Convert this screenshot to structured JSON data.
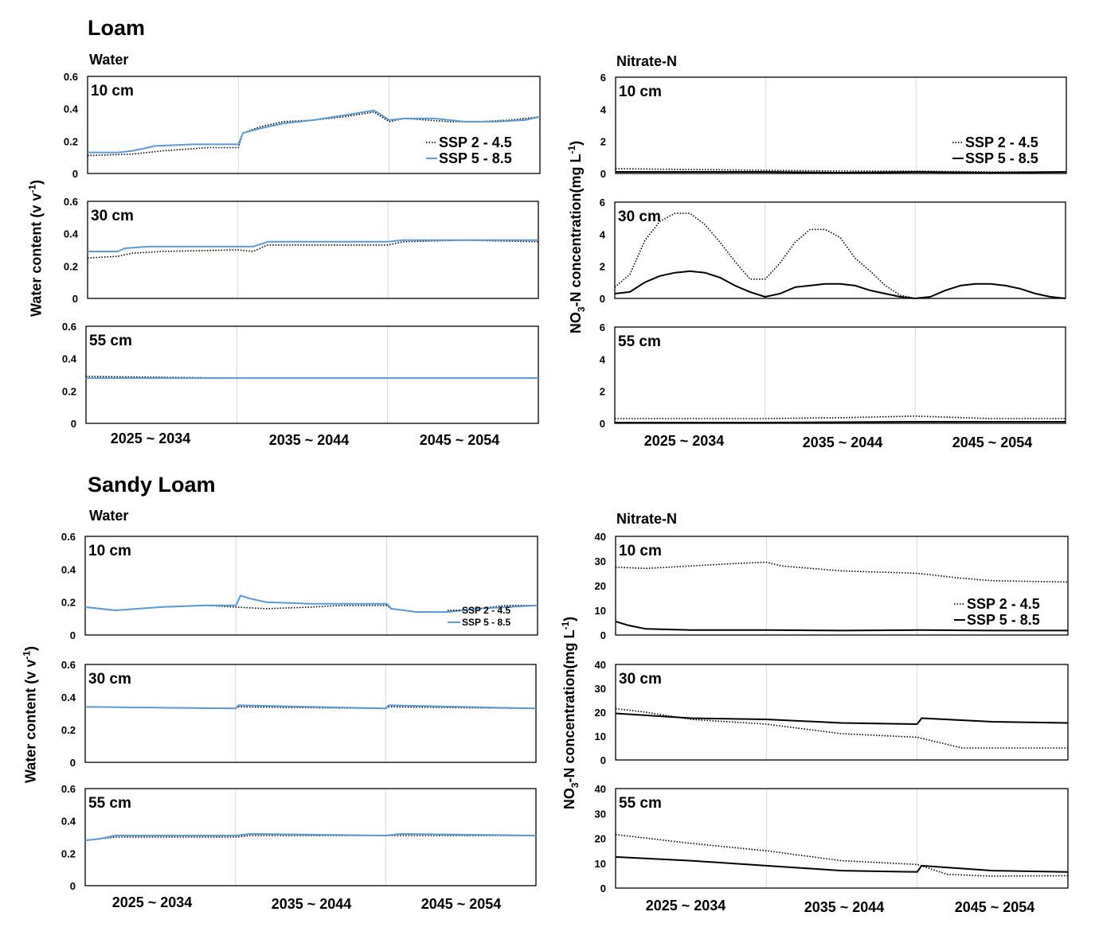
{
  "sections": [
    {
      "key": "loam",
      "title": "Loam"
    },
    {
      "key": "sandy",
      "title": "Sandy Loam"
    }
  ],
  "columns": {
    "water": "Water",
    "nitrate": "Nitrate-N"
  },
  "y_labels": {
    "water": {
      "main": "Water content (v v",
      "sup": "-1",
      "close": ")"
    },
    "nitrate": {
      "pre": "NO",
      "sub": "3",
      "main": "-N concentration(mg L",
      "sup": "-1",
      "close": ")"
    }
  },
  "periods": [
    "2025 ~ 2034",
    "2035 ~ 2044",
    "2045 ~ 2054"
  ],
  "legend": {
    "ssp245": "SSP 2 - 4.5",
    "ssp585": "SSP 5 - 8.5"
  },
  "colors": {
    "ssp245": "#000000",
    "ssp585_water": "#5b9bd5",
    "ssp585_nitrate": "#000000",
    "axis": "#000000",
    "divider": "#d9d9d9"
  },
  "x_scale": {
    "unit": "year",
    "min": 2025,
    "max": 2055
  },
  "chart_data": [
    {
      "id": "loam-water-10",
      "type": "line",
      "depth_label": "10 cm",
      "ylim": [
        0,
        0.6
      ],
      "yticks": [
        "0",
        "0.2",
        "0.4",
        "0.6"
      ],
      "legend": "bottom-right",
      "series": [
        {
          "name": "SSP 2 - 4.5",
          "style": "dotted",
          "x": [
            2025,
            2028,
            2030,
            2033,
            2035,
            2035.3,
            2036.5,
            2038,
            2040,
            2042,
            2044,
            2045,
            2046,
            2049,
            2051,
            2053,
            2055
          ],
          "y": [
            0.11,
            0.12,
            0.14,
            0.16,
            0.16,
            0.25,
            0.29,
            0.32,
            0.33,
            0.35,
            0.38,
            0.32,
            0.34,
            0.32,
            0.32,
            0.33,
            0.35
          ]
        },
        {
          "name": "SSP 5 - 8.5",
          "style": "solid",
          "x": [
            2025,
            2027,
            2028,
            2029.5,
            2032,
            2035,
            2035.3,
            2036.5,
            2038,
            2040,
            2042,
            2044,
            2045,
            2046,
            2048,
            2050,
            2052,
            2054,
            2055
          ],
          "y": [
            0.13,
            0.13,
            0.14,
            0.17,
            0.18,
            0.18,
            0.25,
            0.28,
            0.31,
            0.33,
            0.36,
            0.39,
            0.33,
            0.34,
            0.34,
            0.32,
            0.32,
            0.33,
            0.35
          ]
        }
      ]
    },
    {
      "id": "loam-water-30",
      "type": "line",
      "depth_label": "30 cm",
      "ylim": [
        0,
        0.6
      ],
      "yticks": [
        "0",
        "0.2",
        "0.4",
        "0.6"
      ],
      "series": [
        {
          "name": "SSP 2 - 4.5",
          "style": "dotted",
          "x": [
            2025,
            2027,
            2028,
            2030,
            2035,
            2036,
            2037,
            2040,
            2045,
            2046,
            2050,
            2055
          ],
          "y": [
            0.25,
            0.26,
            0.28,
            0.29,
            0.3,
            0.29,
            0.33,
            0.33,
            0.33,
            0.35,
            0.36,
            0.35
          ]
        },
        {
          "name": "SSP 5 - 8.5",
          "style": "solid",
          "x": [
            2025,
            2027,
            2027.5,
            2029,
            2035,
            2036,
            2037,
            2040,
            2045,
            2046,
            2050,
            2055
          ],
          "y": [
            0.29,
            0.29,
            0.31,
            0.32,
            0.32,
            0.32,
            0.35,
            0.35,
            0.35,
            0.36,
            0.36,
            0.36
          ]
        }
      ]
    },
    {
      "id": "loam-water-55",
      "type": "line",
      "depth_label": "55 cm",
      "ylim": [
        0,
        0.6
      ],
      "yticks": [
        "0",
        "0.2",
        "0.4",
        "0.6"
      ],
      "series": [
        {
          "name": "SSP 2 - 4.5",
          "style": "dotted",
          "x": [
            2025,
            2035,
            2045,
            2055
          ],
          "y": [
            0.29,
            0.28,
            0.28,
            0.28
          ]
        },
        {
          "name": "SSP 5 - 8.5",
          "style": "solid",
          "x": [
            2025,
            2035,
            2045,
            2055
          ],
          "y": [
            0.28,
            0.28,
            0.28,
            0.28
          ]
        }
      ]
    },
    {
      "id": "loam-nitrate-10",
      "type": "line",
      "depth_label": "10 cm",
      "ylim": [
        0,
        6
      ],
      "yticks": [
        "0",
        "2",
        "4",
        "6"
      ],
      "legend": "bottom-right",
      "series": [
        {
          "name": "SSP 2 - 4.5",
          "style": "dotted",
          "x": [
            2025,
            2030,
            2035,
            2040,
            2045,
            2050,
            2055
          ],
          "y": [
            0.3,
            0.25,
            0.2,
            0.15,
            0.15,
            0.1,
            0.1
          ]
        },
        {
          "name": "SSP 5 - 8.5",
          "style": "solid",
          "x": [
            2025,
            2030,
            2035,
            2040,
            2045,
            2050,
            2055
          ],
          "y": [
            0.1,
            0.1,
            0.1,
            0.05,
            0.1,
            0.05,
            0.1
          ]
        }
      ]
    },
    {
      "id": "loam-nitrate-30",
      "type": "line",
      "depth_label": "30 cm",
      "ylim": [
        0,
        6
      ],
      "yticks": [
        "0",
        "2",
        "4",
        "6"
      ],
      "series": [
        {
          "name": "SSP 2 - 4.5",
          "style": "dotted",
          "x": [
            2025,
            2026,
            2027,
            2028,
            2029,
            2030,
            2031,
            2032,
            2033,
            2034,
            2035,
            2036,
            2037,
            2038,
            2039,
            2040,
            2041,
            2042,
            2043,
            2044,
            2045
          ],
          "y": [
            0.7,
            1.5,
            3.6,
            4.8,
            5.3,
            5.3,
            4.6,
            3.5,
            2.3,
            1.2,
            1.2,
            2.2,
            3.5,
            4.3,
            4.3,
            3.8,
            2.5,
            1.7,
            0.8,
            0.2,
            0.0
          ]
        },
        {
          "name": "SSP 5 - 8.5",
          "style": "solid",
          "x": [
            2025,
            2026,
            2027,
            2028,
            2029,
            2030,
            2031,
            2032,
            2033,
            2034,
            2035,
            2036,
            2037,
            2038,
            2039,
            2040,
            2041,
            2042,
            2043,
            2044,
            2045,
            2046,
            2047,
            2048,
            2049,
            2050,
            2051,
            2052,
            2053,
            2054,
            2055
          ],
          "y": [
            0.3,
            0.4,
            1.0,
            1.4,
            1.6,
            1.7,
            1.6,
            1.3,
            0.8,
            0.4,
            0.1,
            0.3,
            0.7,
            0.8,
            0.9,
            0.9,
            0.8,
            0.5,
            0.3,
            0.1,
            0.0,
            0.1,
            0.5,
            0.8,
            0.9,
            0.9,
            0.8,
            0.6,
            0.3,
            0.1,
            0.0
          ]
        }
      ]
    },
    {
      "id": "loam-nitrate-55",
      "type": "line",
      "depth_label": "55 cm",
      "ylim": [
        0,
        6
      ],
      "yticks": [
        "0",
        "2",
        "4",
        "6"
      ],
      "series": [
        {
          "name": "SSP 2 - 4.5",
          "style": "dotted",
          "x": [
            2025,
            2035,
            2040,
            2045,
            2050,
            2055
          ],
          "y": [
            0.3,
            0.3,
            0.35,
            0.45,
            0.3,
            0.3
          ]
        },
        {
          "name": "SSP 5 - 8.5",
          "style": "solid",
          "x": [
            2025,
            2035,
            2045,
            2055
          ],
          "y": [
            0.05,
            0.05,
            0.1,
            0.1
          ]
        }
      ]
    },
    {
      "id": "sandy-water-10",
      "type": "line",
      "depth_label": "10 cm",
      "ylim": [
        0,
        0.6
      ],
      "yticks": [
        "0",
        "0.2",
        "0.4",
        "0.6"
      ],
      "legend": "bottom-right",
      "legend_small": true,
      "series": [
        {
          "name": "SSP 2 - 4.5",
          "style": "dotted",
          "x": [
            2025,
            2027,
            2030,
            2033,
            2035,
            2037,
            2040,
            2042,
            2045,
            2045.3,
            2047,
            2049,
            2051,
            2053,
            2055
          ],
          "y": [
            0.17,
            0.15,
            0.17,
            0.18,
            0.17,
            0.16,
            0.17,
            0.18,
            0.18,
            0.16,
            0.14,
            0.14,
            0.16,
            0.18,
            0.18
          ]
        },
        {
          "name": "SSP 5 - 8.5",
          "style": "solid",
          "x": [
            2025,
            2027,
            2030,
            2033,
            2035,
            2035.3,
            2036,
            2037,
            2040,
            2043,
            2045,
            2045.3,
            2047,
            2049,
            2051,
            2053,
            2055
          ],
          "y": [
            0.17,
            0.15,
            0.17,
            0.18,
            0.18,
            0.24,
            0.22,
            0.2,
            0.19,
            0.19,
            0.19,
            0.16,
            0.14,
            0.14,
            0.16,
            0.17,
            0.18
          ]
        }
      ]
    },
    {
      "id": "sandy-water-30",
      "type": "line",
      "depth_label": "30 cm",
      "ylim": [
        0,
        0.6
      ],
      "yticks": [
        "0",
        "0.2",
        "0.4",
        "0.6"
      ],
      "series": [
        {
          "name": "SSP 2 - 4.5",
          "style": "dotted",
          "x": [
            2025,
            2035,
            2035.2,
            2045,
            2045.2,
            2055
          ],
          "y": [
            0.34,
            0.33,
            0.34,
            0.33,
            0.34,
            0.33
          ]
        },
        {
          "name": "SSP 5 - 8.5",
          "style": "solid",
          "x": [
            2025,
            2035,
            2035.2,
            2045,
            2045.2,
            2055
          ],
          "y": [
            0.34,
            0.33,
            0.35,
            0.33,
            0.35,
            0.33
          ]
        }
      ]
    },
    {
      "id": "sandy-water-55",
      "type": "line",
      "depth_label": "55 cm",
      "ylim": [
        0,
        0.6
      ],
      "yticks": [
        "0",
        "0.2",
        "0.4",
        "0.6"
      ],
      "series": [
        {
          "name": "SSP 2 - 4.5",
          "style": "dotted",
          "x": [
            2025,
            2026,
            2027,
            2035,
            2036,
            2045,
            2046,
            2055
          ],
          "y": [
            0.28,
            0.29,
            0.3,
            0.3,
            0.31,
            0.31,
            0.31,
            0.31
          ]
        },
        {
          "name": "SSP 5 - 8.5",
          "style": "solid",
          "x": [
            2025,
            2026,
            2027,
            2035,
            2036,
            2045,
            2046,
            2055
          ],
          "y": [
            0.28,
            0.29,
            0.31,
            0.31,
            0.32,
            0.31,
            0.32,
            0.31
          ]
        }
      ]
    },
    {
      "id": "sandy-nitrate-10",
      "type": "line",
      "depth_label": "10 cm",
      "ylim": [
        0,
        40
      ],
      "yticks": [
        "0",
        "10",
        "20",
        "30",
        "40"
      ],
      "legend": "bottom-right",
      "series": [
        {
          "name": "SSP 2 - 4.5",
          "style": "dotted",
          "x": [
            2025,
            2027,
            2030,
            2033,
            2035,
            2036,
            2040,
            2045,
            2048,
            2050,
            2055
          ],
          "y": [
            27.5,
            27,
            28,
            29,
            29.5,
            28,
            26,
            25,
            23,
            22,
            21.5
          ]
        },
        {
          "name": "SSP 5 - 8.5",
          "style": "solid",
          "x": [
            2025,
            2025.8,
            2027,
            2030,
            2035,
            2040,
            2045,
            2045.3,
            2050,
            2055
          ],
          "y": [
            5.5,
            4,
            2.5,
            2,
            2,
            1.8,
            2,
            2,
            1.8,
            1.8
          ]
        }
      ]
    },
    {
      "id": "sandy-nitrate-30",
      "type": "line",
      "depth_label": "30 cm",
      "ylim": [
        0,
        40
      ],
      "yticks": [
        "0",
        "10",
        "20",
        "30",
        "40"
      ],
      "series": [
        {
          "name": "SSP 2 - 4.5",
          "style": "dotted",
          "x": [
            2025,
            2027,
            2030,
            2035,
            2040,
            2045,
            2046,
            2048,
            2050,
            2055
          ],
          "y": [
            21.5,
            20,
            17,
            15,
            11,
            9.5,
            8,
            5,
            5,
            5
          ]
        },
        {
          "name": "SSP 5 - 8.5",
          "style": "solid",
          "x": [
            2025,
            2030,
            2035,
            2040,
            2045,
            2045.3,
            2050,
            2055
          ],
          "y": [
            19.5,
            17.5,
            17,
            15.5,
            15,
            17.5,
            16,
            15.5
          ]
        }
      ]
    },
    {
      "id": "sandy-nitrate-55",
      "type": "line",
      "depth_label": "55 cm",
      "ylim": [
        0,
        40
      ],
      "yticks": [
        "0",
        "10",
        "20",
        "30",
        "40"
      ],
      "series": [
        {
          "name": "SSP 2 - 4.5",
          "style": "dotted",
          "x": [
            2025,
            2030,
            2035,
            2040,
            2045,
            2047,
            2050,
            2055
          ],
          "y": [
            21.5,
            18,
            15,
            11,
            9.5,
            5.5,
            4.8,
            5
          ]
        },
        {
          "name": "SSP 5 - 8.5",
          "style": "solid",
          "x": [
            2025,
            2030,
            2035,
            2040,
            2045,
            2045.3,
            2050,
            2055
          ],
          "y": [
            12.5,
            11,
            9,
            7,
            6.5,
            9,
            7,
            6.5
          ]
        }
      ]
    }
  ]
}
